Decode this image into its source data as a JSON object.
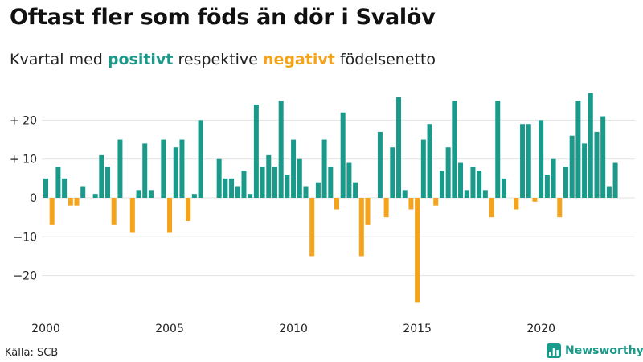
{
  "title": "Oftast fler som föds än dör i Svalöv",
  "subtitle": {
    "prefix": "Kvartal med",
    "positive": "positivt",
    "middle": "respektive",
    "negative": "negativt",
    "suffix": "födelsenetto"
  },
  "source": "Källa: SCB",
  "brand": "Newsworthy",
  "colors": {
    "positive": "#1a9a8a",
    "negative": "#f5a31a",
    "grid": "#e3e3e3",
    "text": "#222222"
  },
  "chart_data": {
    "type": "bar",
    "title": "Oftast fler som föds än dör i Svalöv",
    "xlabel": "",
    "ylabel": "",
    "x_start": 2000,
    "x_step": 0.25,
    "x_range": [
      2000,
      2023.5
    ],
    "ylim": [
      -30,
      30
    ],
    "y_ticks": [
      20,
      10,
      0,
      -10,
      -20
    ],
    "y_tick_labels": [
      "+ 20",
      "+ 10",
      "0",
      "−10",
      "−20"
    ],
    "x_ticks": [
      2000,
      2005,
      2010,
      2015,
      2020
    ],
    "x_tick_labels": [
      "2000",
      "2005",
      "2010",
      "2015",
      "2020"
    ],
    "grid": true,
    "values": [
      5,
      -7,
      8,
      5,
      -2,
      -2,
      3,
      0,
      1,
      11,
      8,
      -7,
      15,
      0,
      -9,
      2,
      14,
      2,
      0,
      15,
      -9,
      13,
      15,
      -6,
      1,
      20,
      0,
      0,
      10,
      5,
      5,
      3,
      7,
      1,
      24,
      8,
      11,
      8,
      25,
      6,
      15,
      10,
      3,
      -15,
      4,
      15,
      8,
      -3,
      22,
      9,
      4,
      -15,
      -7,
      0,
      17,
      -5,
      13,
      26,
      2,
      -3,
      -27,
      15,
      19,
      -2,
      7,
      13,
      25,
      9,
      2,
      8,
      7,
      2,
      -5,
      25,
      5,
      0,
      -3,
      19,
      19,
      -1,
      20,
      6,
      10,
      -5,
      8,
      16,
      25,
      14,
      27,
      17,
      21,
      3,
      9
    ]
  }
}
